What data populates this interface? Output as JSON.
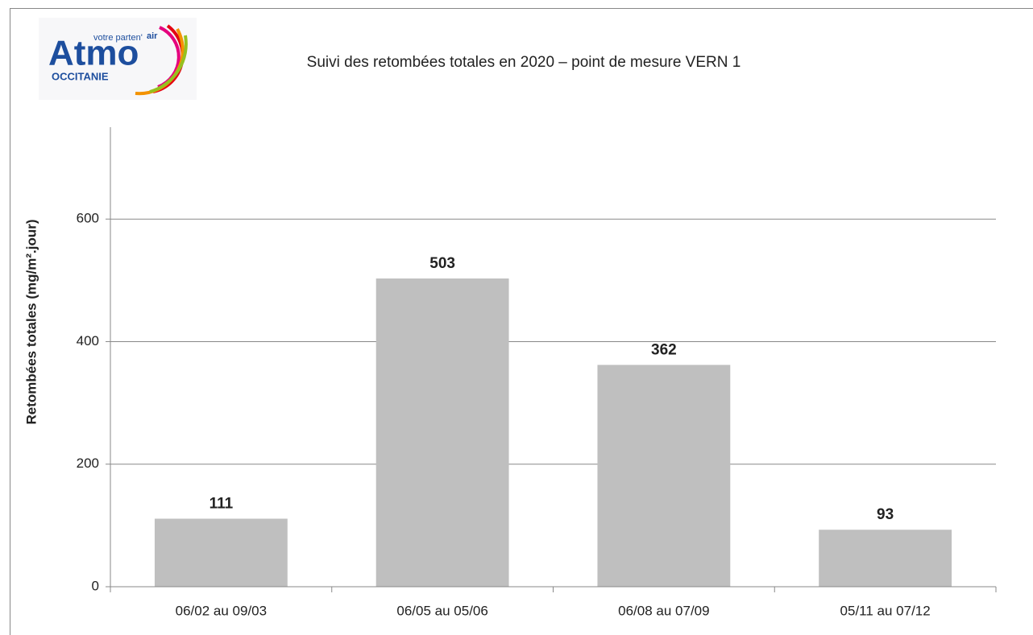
{
  "logo": {
    "name": "Atmo",
    "tagline": "votre parten'",
    "tagline_emphasis": "air",
    "region": "OCCITANIE"
  },
  "chart_data": {
    "type": "bar",
    "title": "Suivi des retombées totales en 2020 – point de mesure VERN 1",
    "y_axis_label": "Retombées totales  (mg/m².jour)",
    "categories": [
      "06/02 au 09/03",
      "06/05 au 05/06",
      "06/08 au 07/09",
      "05/11 au 07/12"
    ],
    "values": [
      111,
      503,
      362,
      93
    ],
    "color": "#bfbfbf",
    "ylim": [
      0,
      750
    ],
    "yticks": [
      0,
      200,
      400,
      600
    ],
    "grid": true
  }
}
